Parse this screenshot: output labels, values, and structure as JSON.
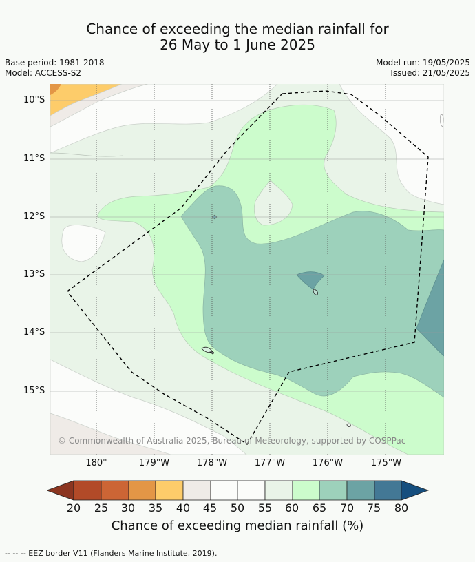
{
  "title": {
    "line1": "Chance of exceeding the median rainfall for",
    "line2": "26 May to 1 June 2025"
  },
  "meta": {
    "base_period": "Base period: 1981-2018",
    "model": "Model: ACCESS-S2",
    "model_run": "Model run: 19/05/2025",
    "issued": "Issued: 21/05/2025"
  },
  "map": {
    "lat_labels": [
      "10°S",
      "11°S",
      "12°S",
      "13°S",
      "14°S",
      "15°S"
    ],
    "lon_labels": [
      "180°",
      "179°W",
      "178°W",
      "177°W",
      "176°W",
      "175°W"
    ],
    "copyright": "© Commonwealth of Australia 2025, Bureau of Meteorology, supported by COSPPac"
  },
  "colorbar": {
    "ticks": [
      "20",
      "25",
      "30",
      "35",
      "40",
      "45",
      "50",
      "55",
      "60",
      "65",
      "70",
      "75",
      "80"
    ],
    "colors": {
      "below_20": "#8b3520",
      "20_25": "#b24a28",
      "25_30": "#cc6535",
      "30_35": "#e39646",
      "35_40": "#fdcc6a",
      "40_45": "#efebe7",
      "45_50": "#fbfcfa",
      "50_55": "#fbfcfa",
      "55_60": "#e9f4e8",
      "60_65": "#ccfccc",
      "65_70": "#9dd1bb",
      "70_75": "#6ca3a4",
      "75_80": "#437895",
      "above_80": "#154e7e"
    },
    "label": "Chance of exceeding median rainfall (%)"
  },
  "footer": {
    "text": "-- -- -- EEZ border V11 (Flanders Marine Institute, 2019)."
  }
}
